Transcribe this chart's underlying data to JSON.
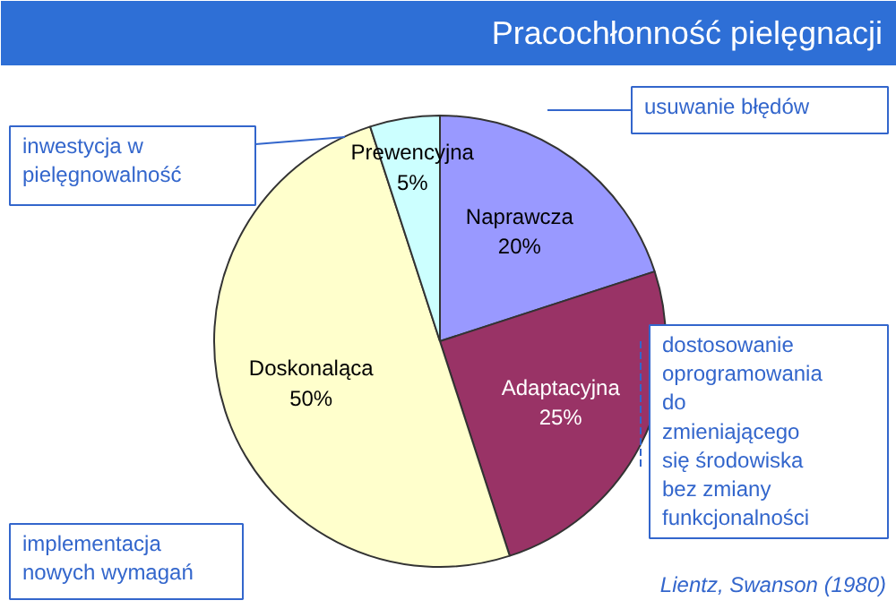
{
  "chart_data": {
    "type": "pie",
    "title": "Pracochłonność pielęgnacji",
    "categories": [
      "Naprawcza",
      "Adaptacyjna",
      "Doskonaląca",
      "Prewencyjna"
    ],
    "values": [
      20,
      25,
      50,
      5
    ],
    "value_labels": [
      "20%",
      "25%",
      "50%",
      "5%"
    ],
    "colors": [
      "#9999ff",
      "#993366",
      "#ffffcc",
      "#ccffff"
    ],
    "annotations": [
      "usuwanie błędów",
      "dostosowanie\noprogramowania\ndo\nzmieniającego\nsię środowiska\nbez zmiany\nfunkcjonalności",
      "implementacja\nnowych wymagań",
      "inwestycja w\npielęgnowalność",
      "Lientz, Swanson (1980)"
    ]
  }
}
